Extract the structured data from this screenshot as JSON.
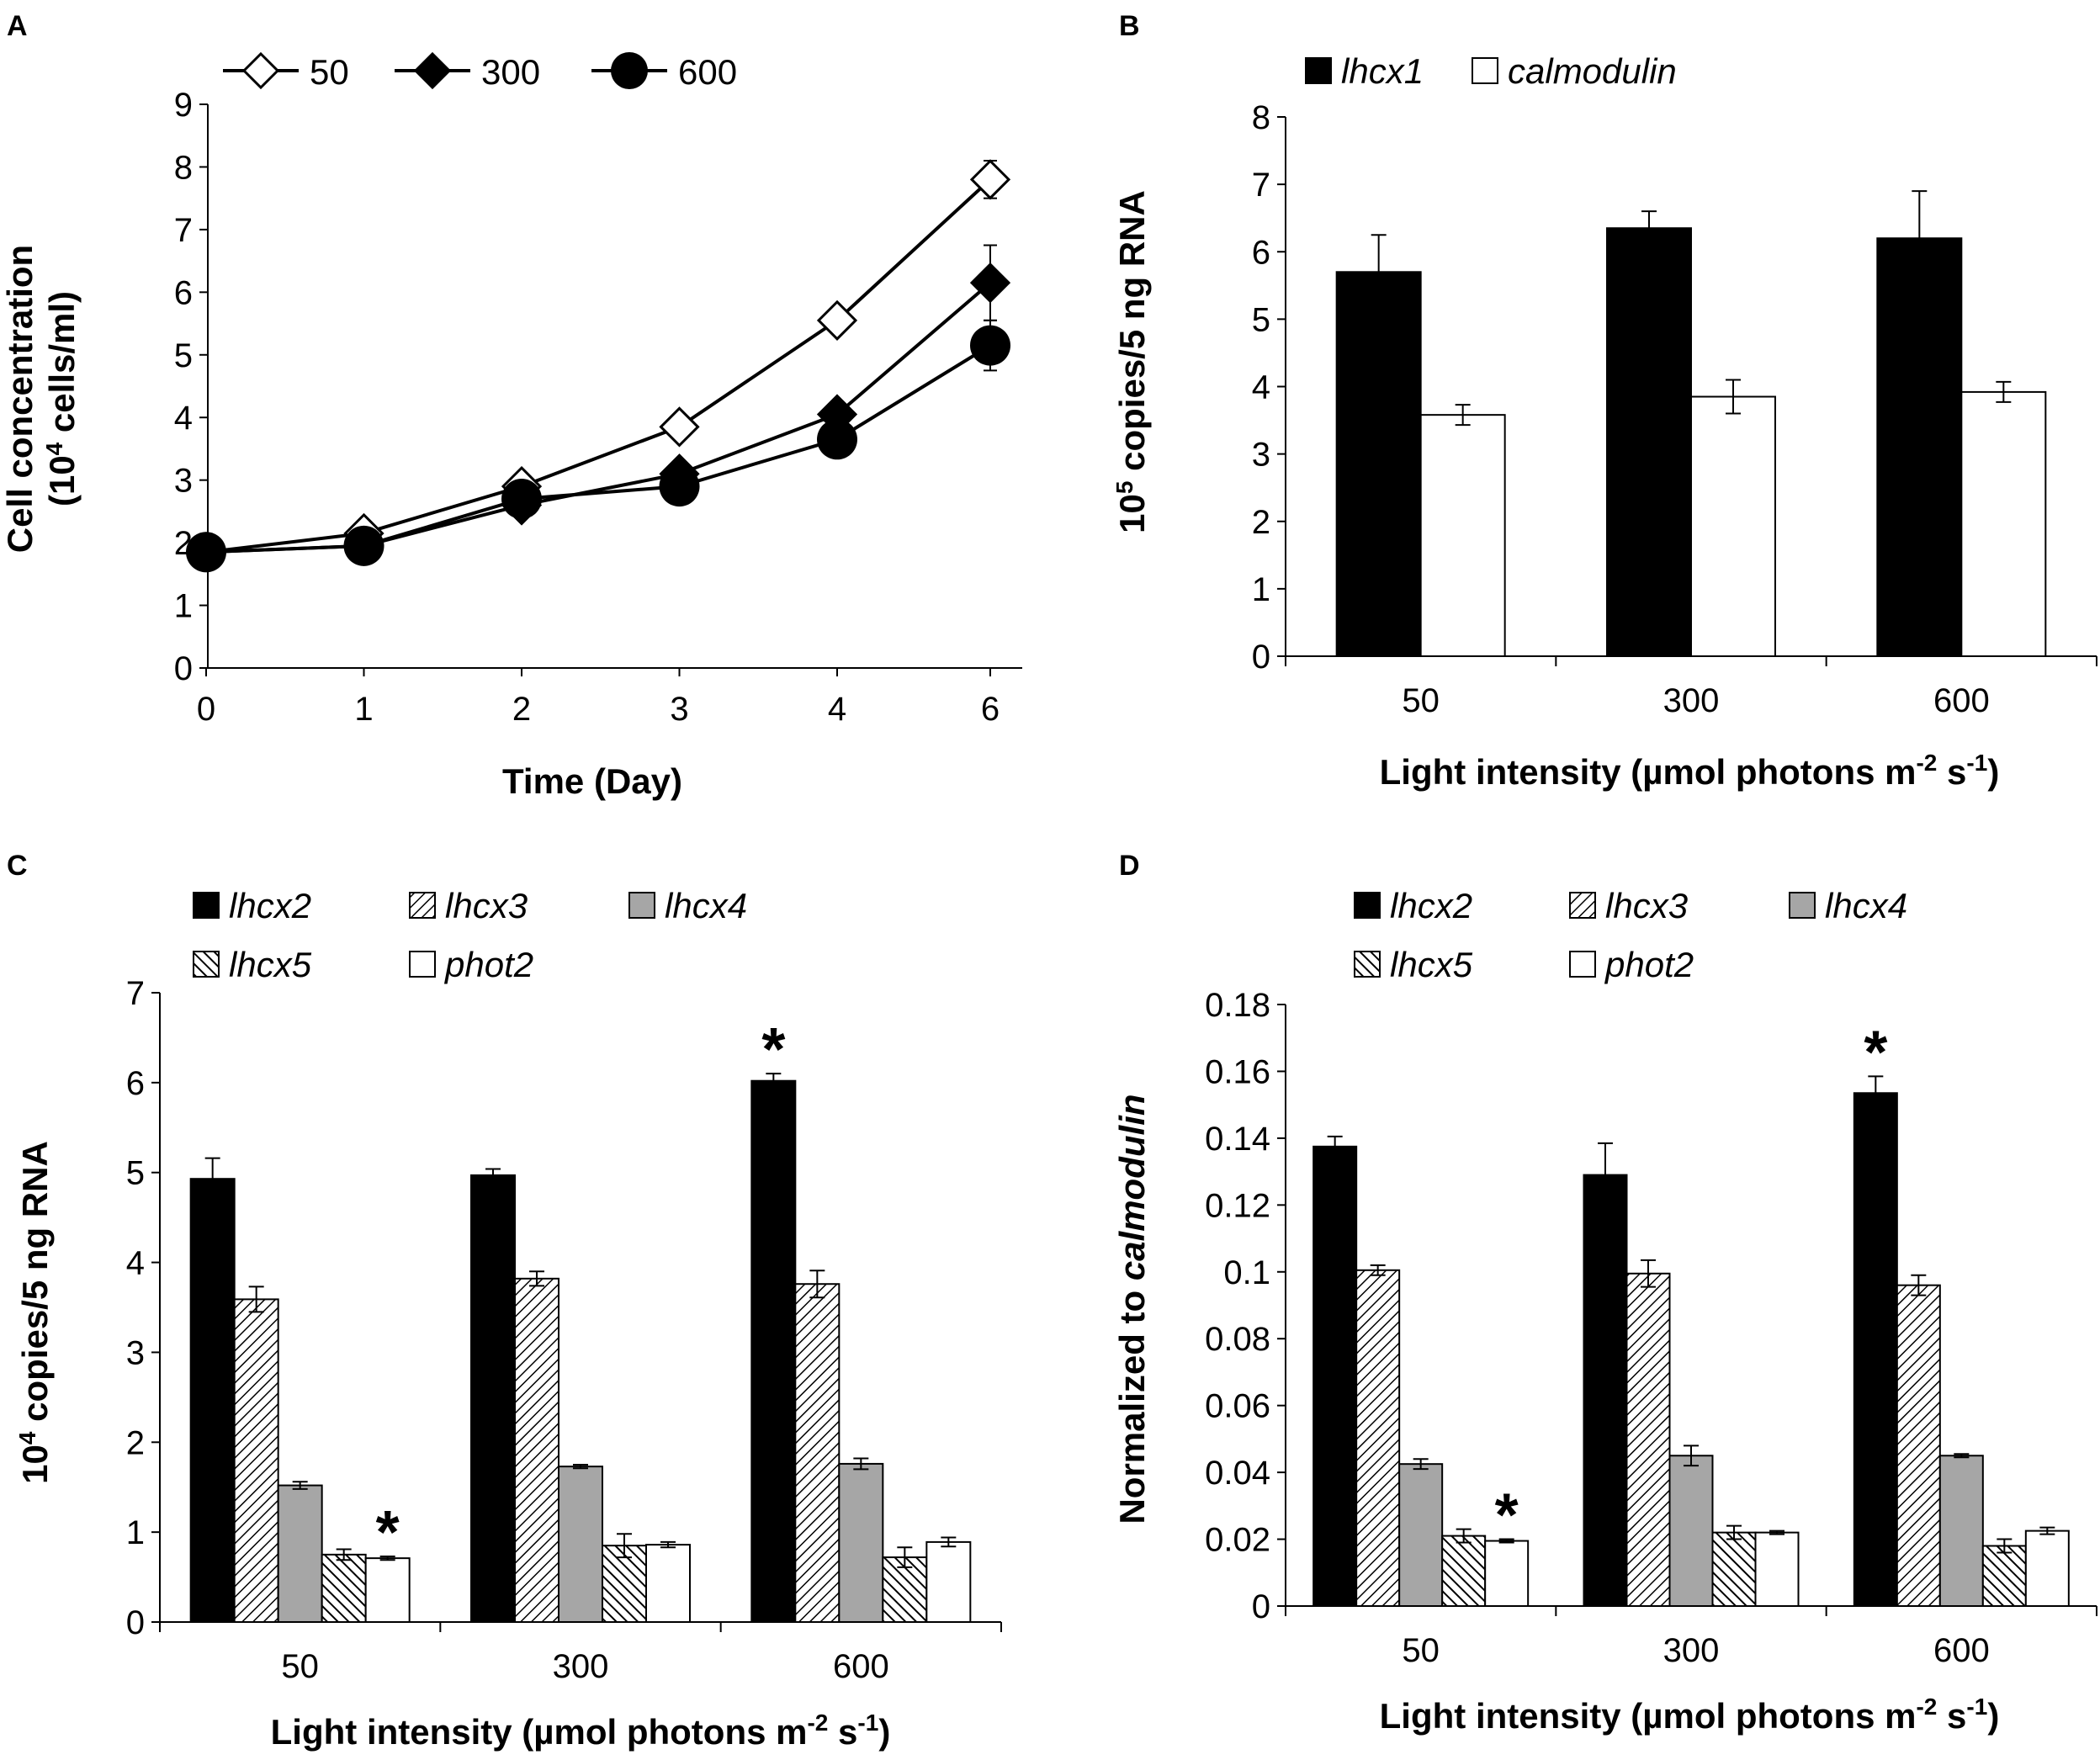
{
  "chart_data": [
    {
      "panel": "A",
      "type": "line",
      "xlabel": "Time (Day)",
      "ylabel": "Cell concentration",
      "ylabel2": "(10",
      "ylabel2_sup": "4",
      "ylabel2_tail": " cells/ml)",
      "x": [
        0,
        1,
        2,
        3,
        4,
        6
      ],
      "xticks": [
        "0",
        "1",
        "2",
        "3",
        "4",
        "6"
      ],
      "ylim": [
        0,
        9
      ],
      "yticks": [
        "0",
        "1",
        "2",
        "3",
        "4",
        "5",
        "6",
        "7",
        "8",
        "9"
      ],
      "series": [
        {
          "name": "50",
          "marker": "open-diamond",
          "values": [
            1.85,
            2.15,
            2.9,
            3.85,
            5.55,
            7.8
          ],
          "errors": [
            0.05,
            0.1,
            0.1,
            0.15,
            0.2,
            0.3
          ]
        },
        {
          "name": "300",
          "marker": "filled-diamond",
          "values": [
            1.85,
            1.95,
            2.6,
            3.1,
            4.05,
            6.15
          ],
          "errors": [
            0.05,
            0.08,
            0.12,
            0.1,
            0.15,
            0.6
          ]
        },
        {
          "name": "600",
          "marker": "filled-circle",
          "values": [
            1.85,
            1.95,
            2.7,
            2.9,
            3.65,
            5.15
          ],
          "errors": [
            0.05,
            0.08,
            0.1,
            0.1,
            0.12,
            0.4
          ]
        }
      ]
    },
    {
      "panel": "B",
      "type": "bar",
      "xlabel": "Light intensity (µmol photons m",
      "xlabel_sup1": "-2",
      "xlabel_mid": " s",
      "xlabel_sup2": "-1",
      "xlabel_tail": ")",
      "ylabel": "10",
      "ylabel_sup": "5",
      "ylabel_tail": " copies/5 ng RNA",
      "categories": [
        "50",
        "300",
        "600"
      ],
      "ylim": [
        0,
        8
      ],
      "yticks": [
        "0",
        "1",
        "2",
        "3",
        "4",
        "5",
        "6",
        "7",
        "8"
      ],
      "series": [
        {
          "name": "lhcx1",
          "fill": "black",
          "values": [
            5.7,
            6.35,
            6.2
          ],
          "errors": [
            0.55,
            0.25,
            0.7
          ]
        },
        {
          "name": "calmodulin",
          "fill": "white",
          "values": [
            3.58,
            3.85,
            3.92
          ],
          "errors": [
            0.15,
            0.25,
            0.15
          ]
        }
      ]
    },
    {
      "panel": "C",
      "type": "bar",
      "xlabel": "Light intensity (µmol photons m",
      "xlabel_sup1": "-2",
      "xlabel_mid": " s",
      "xlabel_sup2": "-1",
      "xlabel_tail": ")",
      "ylabel": "10",
      "ylabel_sup": "4",
      "ylabel_tail": " copies/5 ng RNA",
      "categories": [
        "50",
        "300",
        "600"
      ],
      "ylim": [
        0,
        7
      ],
      "yticks": [
        "0",
        "1",
        "2",
        "3",
        "4",
        "5",
        "6",
        "7"
      ],
      "series": [
        {
          "name": "lhcx2",
          "fill": "black",
          "values": [
            4.93,
            4.97,
            6.02
          ],
          "errors": [
            0.23,
            0.07,
            0.08
          ]
        },
        {
          "name": "lhcx3",
          "fill": "hatch-fwd",
          "values": [
            3.59,
            3.82,
            3.76
          ],
          "errors": [
            0.14,
            0.08,
            0.15
          ]
        },
        {
          "name": "lhcx4",
          "fill": "gray",
          "values": [
            1.52,
            1.73,
            1.76
          ],
          "errors": [
            0.04,
            0.02,
            0.06
          ]
        },
        {
          "name": "lhcx5",
          "fill": "hatch-back",
          "values": [
            0.75,
            0.85,
            0.72
          ],
          "errors": [
            0.06,
            0.13,
            0.11
          ]
        },
        {
          "name": "phot2",
          "fill": "white",
          "values": [
            0.71,
            0.86,
            0.89
          ],
          "errors": [
            0.02,
            0.03,
            0.05
          ]
        }
      ],
      "annotations": [
        {
          "text": "*",
          "category": 0,
          "series": 4
        },
        {
          "text": "*",
          "category": 2,
          "series": 0
        }
      ]
    },
    {
      "panel": "D",
      "type": "bar",
      "xlabel": "Light intensity (µmol photons m",
      "xlabel_sup1": "-2",
      "xlabel_mid": " s",
      "xlabel_sup2": "-1",
      "xlabel_tail": ")",
      "ylabel": "Normalized to ",
      "ylabel_italic": "calmodulin",
      "categories": [
        "50",
        "300",
        "600"
      ],
      "ylim": [
        0,
        0.18
      ],
      "yticks": [
        "0",
        "0.02",
        "0.04",
        "0.06",
        "0.08",
        "0.1",
        "0.12",
        "0.14",
        "0.16",
        "0.18"
      ],
      "series": [
        {
          "name": "lhcx2",
          "fill": "black",
          "values": [
            0.1375,
            0.129,
            0.1535
          ],
          "errors": [
            0.003,
            0.0095,
            0.005
          ]
        },
        {
          "name": "lhcx3",
          "fill": "hatch-fwd",
          "values": [
            0.1005,
            0.0995,
            0.096
          ],
          "errors": [
            0.0015,
            0.004,
            0.003
          ]
        },
        {
          "name": "lhcx4",
          "fill": "gray",
          "values": [
            0.0425,
            0.045,
            0.045
          ],
          "errors": [
            0.0015,
            0.003,
            0.0005
          ]
        },
        {
          "name": "lhcx5",
          "fill": "hatch-back",
          "values": [
            0.021,
            0.022,
            0.018
          ],
          "errors": [
            0.002,
            0.002,
            0.002
          ]
        },
        {
          "name": "phot2",
          "fill": "white",
          "values": [
            0.0195,
            0.022,
            0.0225
          ],
          "errors": [
            0.0005,
            0.0005,
            0.001
          ]
        }
      ],
      "annotations": [
        {
          "text": "*",
          "category": 0,
          "series": 4
        },
        {
          "text": "*",
          "category": 2,
          "series": 0
        }
      ]
    }
  ]
}
